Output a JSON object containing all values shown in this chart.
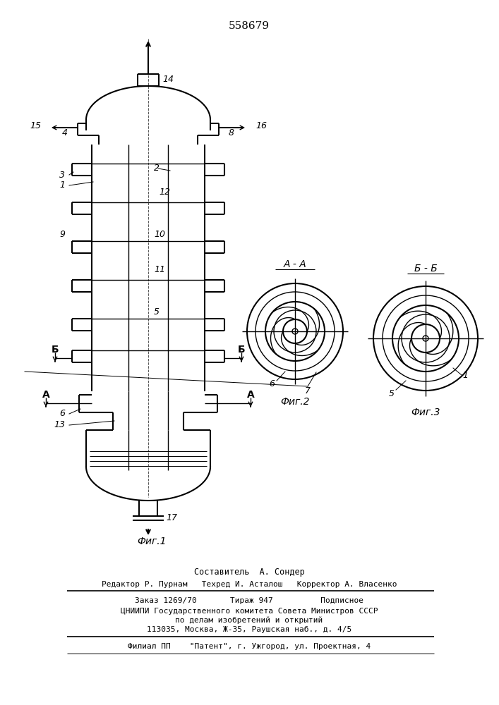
{
  "patent_number": "558679",
  "fig1_caption": "Фиг.1",
  "fig2_caption": "Фиг.2",
  "fig3_caption": "Фиг.3",
  "section_aa": "А - А",
  "section_bb": "Б - Б",
  "footer_line1": "Составитель  А. Сондер",
  "footer_line2": "Редактор Р. Пурнам   Техред И. Асталош   Корректор А. Власенко",
  "footer_line3": "Заказ 1269/70       Тираж 947          Подписное",
  "footer_line4": "ЦНИИПИ Государственного комитета Совета Министров СССР",
  "footer_line5": "по делам изобретений и открытий",
  "footer_line6": "113035, Москва, Ж-35, Раушская наб., д. 4/5",
  "footer_line7": "Филиал ПП    \"Патент\", г. Ужгород, ул. Проектная, 4",
  "bg_color": "#ffffff",
  "line_color": "#000000",
  "lw": 1.0,
  "lw_thick": 1.5
}
